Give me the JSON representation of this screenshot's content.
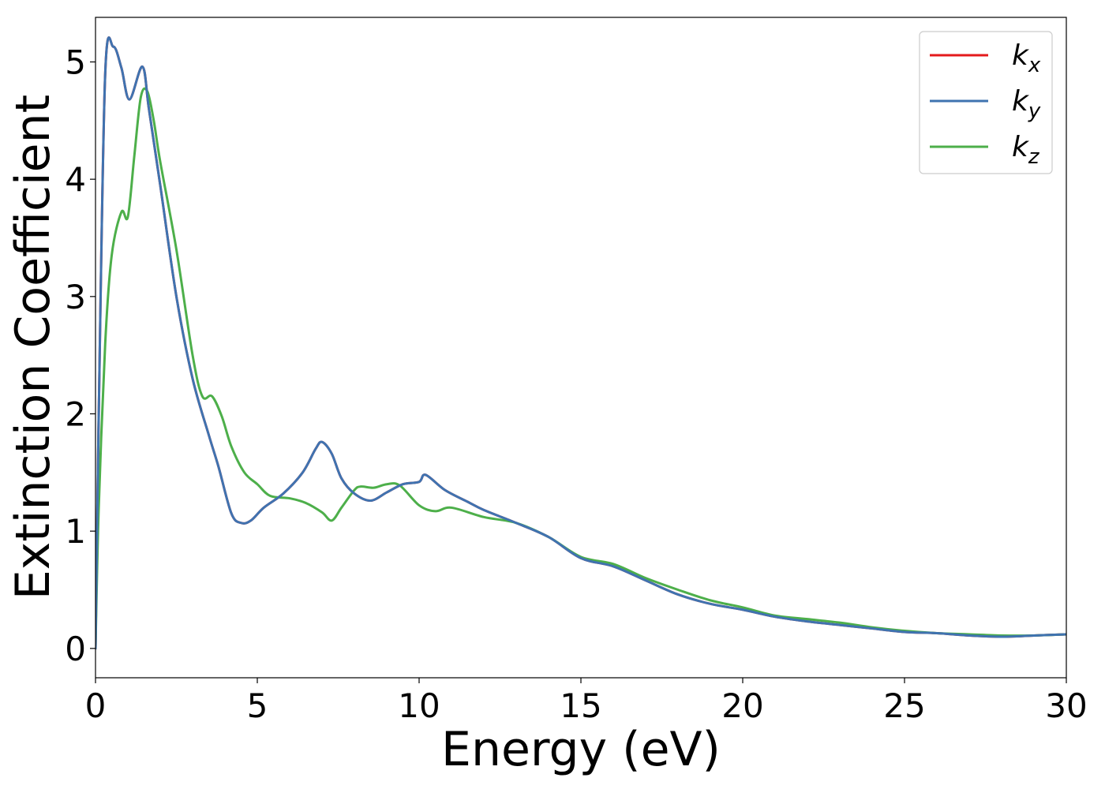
{
  "chart_data": {
    "type": "line",
    "xlabel": "Energy (eV)",
    "ylabel": "Extinction Coefficient",
    "xlim": [
      0,
      30
    ],
    "ylim": [
      -0.25,
      5.38
    ],
    "xticks": [
      0,
      5,
      10,
      15,
      20,
      25,
      30
    ],
    "yticks": [
      0,
      1,
      2,
      3,
      4,
      5
    ],
    "grid": false,
    "legend_position": "top-right",
    "series": [
      {
        "name": "k_x",
        "legend_base": "k",
        "legend_sub": "x",
        "color": "#e41a1c",
        "x": [
          0,
          0.1,
          0.3,
          0.55,
          0.8,
          1.05,
          1.45,
          1.65,
          2.0,
          2.5,
          3.0,
          3.5,
          3.8,
          4.2,
          4.5,
          4.8,
          5.2,
          5.8,
          6.4,
          6.8,
          7.0,
          7.3,
          7.6,
          8.0,
          8.5,
          9.0,
          9.5,
          10.0,
          10.2,
          10.8,
          11.5,
          12.0,
          13.0,
          14.0,
          15.0,
          16.0,
          17.0,
          18.0,
          19.0,
          20.0,
          21.0,
          22.0,
          23.0,
          24.0,
          25.0,
          26.0,
          27.0,
          28.0,
          29.0,
          30.0
        ],
        "y": [
          0.0,
          2.0,
          4.9,
          5.13,
          4.95,
          4.68,
          4.96,
          4.6,
          3.95,
          3.0,
          2.3,
          1.82,
          1.55,
          1.15,
          1.07,
          1.09,
          1.2,
          1.32,
          1.5,
          1.7,
          1.76,
          1.66,
          1.45,
          1.32,
          1.26,
          1.33,
          1.4,
          1.42,
          1.48,
          1.35,
          1.25,
          1.18,
          1.07,
          0.95,
          0.77,
          0.7,
          0.58,
          0.46,
          0.38,
          0.33,
          0.27,
          0.23,
          0.2,
          0.17,
          0.14,
          0.13,
          0.11,
          0.1,
          0.11,
          0.12
        ]
      },
      {
        "name": "k_y",
        "legend_base": "k",
        "legend_sub": "y",
        "color": "#3f73b0",
        "x": [
          0,
          0.1,
          0.3,
          0.55,
          0.8,
          1.05,
          1.45,
          1.65,
          2.0,
          2.5,
          3.0,
          3.5,
          3.8,
          4.2,
          4.5,
          4.8,
          5.2,
          5.8,
          6.4,
          6.8,
          7.0,
          7.3,
          7.6,
          8.0,
          8.5,
          9.0,
          9.5,
          10.0,
          10.2,
          10.8,
          11.5,
          12.0,
          13.0,
          14.0,
          15.0,
          16.0,
          17.0,
          18.0,
          19.0,
          20.0,
          21.0,
          22.0,
          23.0,
          24.0,
          25.0,
          26.0,
          27.0,
          28.0,
          29.0,
          30.0
        ],
        "y": [
          0.0,
          2.0,
          4.9,
          5.13,
          4.95,
          4.68,
          4.96,
          4.6,
          3.95,
          3.0,
          2.3,
          1.82,
          1.55,
          1.15,
          1.07,
          1.09,
          1.2,
          1.32,
          1.5,
          1.7,
          1.76,
          1.66,
          1.45,
          1.32,
          1.26,
          1.33,
          1.4,
          1.42,
          1.48,
          1.35,
          1.25,
          1.18,
          1.07,
          0.95,
          0.77,
          0.7,
          0.58,
          0.46,
          0.38,
          0.33,
          0.27,
          0.23,
          0.2,
          0.17,
          0.14,
          0.13,
          0.11,
          0.1,
          0.11,
          0.12
        ]
      },
      {
        "name": "k_z",
        "legend_base": "k",
        "legend_sub": "z",
        "color": "#4daf4a",
        "x": [
          0,
          0.1,
          0.3,
          0.5,
          0.8,
          1.0,
          1.2,
          1.4,
          1.6,
          1.8,
          2.0,
          2.5,
          3.0,
          3.3,
          3.6,
          3.9,
          4.2,
          4.6,
          5.0,
          5.4,
          6.0,
          6.5,
          7.0,
          7.3,
          7.6,
          8.0,
          8.2,
          8.6,
          9.0,
          9.4,
          10.0,
          10.5,
          11.0,
          12.0,
          13.0,
          14.0,
          15.0,
          16.0,
          17.0,
          18.0,
          19.0,
          20.0,
          21.0,
          22.0,
          23.0,
          24.0,
          25.0,
          26.0,
          27.0,
          28.0,
          29.0,
          30.0
        ],
        "y": [
          0.0,
          1.2,
          2.6,
          3.35,
          3.72,
          3.68,
          4.2,
          4.7,
          4.75,
          4.5,
          4.15,
          3.4,
          2.5,
          2.15,
          2.15,
          1.98,
          1.72,
          1.5,
          1.4,
          1.3,
          1.28,
          1.24,
          1.16,
          1.09,
          1.2,
          1.35,
          1.38,
          1.37,
          1.4,
          1.39,
          1.22,
          1.17,
          1.2,
          1.12,
          1.07,
          0.95,
          0.78,
          0.72,
          0.6,
          0.5,
          0.41,
          0.35,
          0.28,
          0.25,
          0.22,
          0.18,
          0.15,
          0.13,
          0.12,
          0.11,
          0.11,
          0.12
        ]
      }
    ]
  }
}
